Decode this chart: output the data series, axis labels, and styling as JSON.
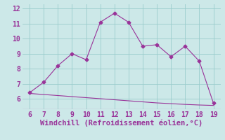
{
  "x": [
    6,
    7,
    8,
    9,
    10,
    11,
    12,
    13,
    14,
    15,
    16,
    17,
    18,
    19
  ],
  "y_upper": [
    6.4,
    7.1,
    8.2,
    9.0,
    8.6,
    11.1,
    11.7,
    11.1,
    9.5,
    9.6,
    8.8,
    9.5,
    8.5,
    5.7
  ],
  "y_lower": [
    6.35,
    6.28,
    6.21,
    6.14,
    6.07,
    6.0,
    5.93,
    5.86,
    5.79,
    5.72,
    5.67,
    5.62,
    5.58,
    5.55
  ],
  "line_color": "#993399",
  "bg_color": "#cce8e8",
  "grid_color": "#99cccc",
  "xlabel": "Windchill (Refroidissement éolien,°C)",
  "xlabel_color": "#993399",
  "xlabel_fontsize": 7.5,
  "tick_color": "#993399",
  "tick_fontsize": 7,
  "xlim": [
    5.5,
    19.5
  ],
  "ylim": [
    5.3,
    12.3
  ],
  "xticks": [
    6,
    7,
    8,
    9,
    10,
    11,
    12,
    13,
    14,
    15,
    16,
    17,
    18,
    19
  ],
  "yticks": [
    6,
    7,
    8,
    9,
    10,
    11,
    12
  ],
  "marker_style": "D",
  "marker_size": 2.5,
  "line_width": 0.8
}
